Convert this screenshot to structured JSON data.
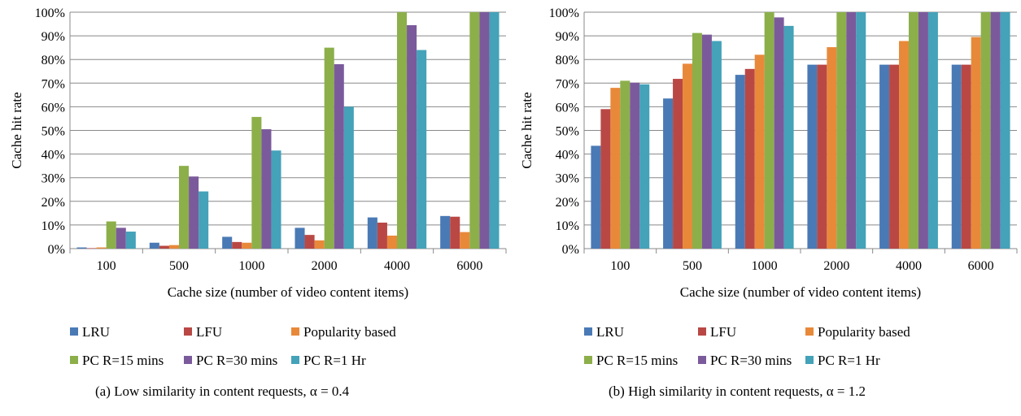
{
  "colors": {
    "LRU": "#4a7ab5",
    "LFU": "#b94845",
    "Popularity based": "#e8893a",
    "PC R=15 mins": "#8caf4a",
    "PC R=30 mins": "#7b5a9c",
    "PC R=1 Hr": "#44a2b9"
  },
  "chart_data": [
    {
      "type": "bar",
      "caption": "(a) Low similarity in content requests, α = 0.4",
      "xlabel": "Cache size (number of video content items)",
      "ylabel": "Cache hit rate",
      "ylim": [
        0,
        100
      ],
      "yticks": [
        "0%",
        "10%",
        "20%",
        "30%",
        "40%",
        "50%",
        "60%",
        "70%",
        "80%",
        "90%",
        "100%"
      ],
      "categories": [
        "100",
        "500",
        "1000",
        "2000",
        "4000",
        "6000"
      ],
      "grid": true,
      "legend_position": "bottom",
      "series": [
        {
          "name": "LRU",
          "values": [
            0.5,
            2.5,
            5,
            8.8,
            13.2,
            13.8
          ]
        },
        {
          "name": "LFU",
          "values": [
            0.2,
            1.2,
            2.8,
            5.8,
            11,
            13.5
          ]
        },
        {
          "name": "Popularity based",
          "values": [
            0.5,
            1.5,
            2.5,
            3.5,
            5.5,
            7
          ]
        },
        {
          "name": "PC R=15 mins",
          "values": [
            11.5,
            35,
            55.7,
            85,
            100,
            100
          ]
        },
        {
          "name": "PC R=30 mins",
          "values": [
            8.8,
            30.5,
            50.5,
            78,
            94.5,
            100
          ]
        },
        {
          "name": "PC R=1 Hr",
          "values": [
            7.2,
            24.2,
            41.5,
            60,
            84,
            100
          ]
        }
      ]
    },
    {
      "type": "bar",
      "caption": "(b) High similarity in content requests, α = 1.2",
      "xlabel": "Cache size (number of video content items)",
      "ylabel": "Cache hit rate",
      "ylim": [
        0,
        100
      ],
      "yticks": [
        "0%",
        "10%",
        "20%",
        "30%",
        "40%",
        "50%",
        "60%",
        "70%",
        "80%",
        "90%",
        "100%"
      ],
      "categories": [
        "100",
        "500",
        "1000",
        "2000",
        "4000",
        "6000"
      ],
      "grid": true,
      "legend_position": "bottom",
      "series": [
        {
          "name": "LRU",
          "values": [
            43.5,
            63.5,
            73.5,
            77.8,
            77.8,
            77.8
          ]
        },
        {
          "name": "LFU",
          "values": [
            59,
            71.8,
            76,
            77.8,
            77.8,
            77.8
          ]
        },
        {
          "name": "Popularity based",
          "values": [
            68,
            78.2,
            82,
            85.2,
            87.8,
            89.5
          ]
        },
        {
          "name": "PC R=15 mins",
          "values": [
            71,
            91.2,
            100,
            100,
            100,
            100
          ]
        },
        {
          "name": "PC R=30 mins",
          "values": [
            70.2,
            90.5,
            97.8,
            100,
            100,
            100
          ]
        },
        {
          "name": "PC R=1 Hr",
          "values": [
            69.5,
            87.8,
            94.2,
            100,
            100,
            100
          ]
        }
      ]
    }
  ]
}
